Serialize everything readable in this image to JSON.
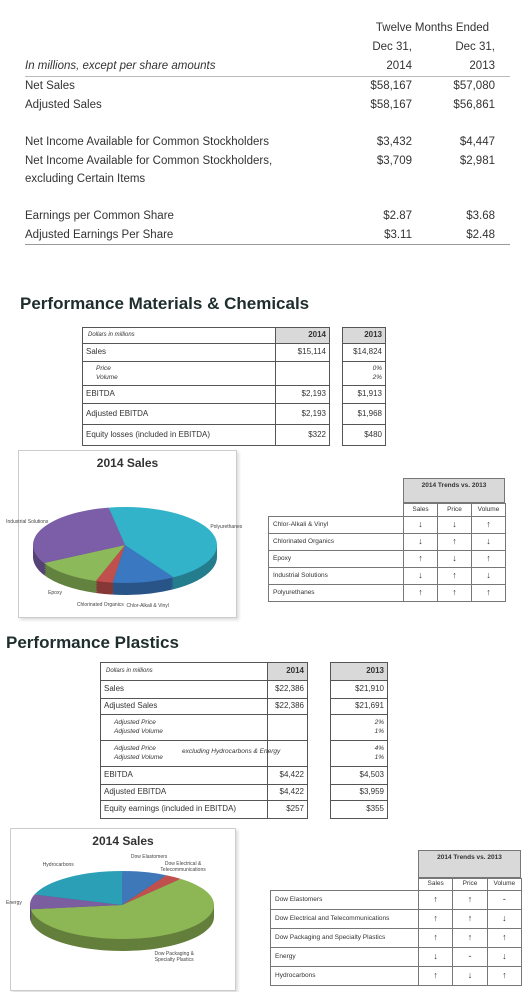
{
  "summary": {
    "period": "Twelve Months Ended",
    "columns": [
      {
        "line1": "Dec 31,",
        "line2": "2014"
      },
      {
        "line1": "Dec 31,",
        "line2": "2013"
      }
    ],
    "caption": "In millions, except per share amounts",
    "groups": [
      [
        [
          "Net Sales",
          "$58,167",
          "$57,080"
        ],
        [
          "Adjusted Sales",
          "$58,167",
          "$56,861"
        ]
      ],
      [
        [
          "Net Income Available for Common Stockholders",
          "$3,432",
          "$4,447"
        ],
        [
          "Net Income Available for Common Stockholders, excluding Certain Items",
          "$3,709",
          "$2,981"
        ]
      ],
      [
        [
          "Earnings per Common Share",
          "$2.87",
          "$3.68"
        ],
        [
          "Adjusted Earnings Per Share",
          "$3.11",
          "$2.48"
        ]
      ]
    ]
  },
  "sections": [
    {
      "title": "Performance Materials & Chemicals",
      "table": {
        "caption": "Dollars in millions",
        "years": [
          "2014",
          "2013"
        ],
        "rows": [
          {
            "label": "Sales",
            "v2014": "$15,114",
            "v2013": "$14,824"
          },
          {
            "sublabels": [
              "Price",
              "Volume"
            ],
            "v2013": [
              "0%",
              "2%"
            ]
          },
          {
            "label": "EBITDA",
            "v2014": "$2,193",
            "v2013": "$1,913"
          },
          {
            "label": "Adjusted EBITDA",
            "v2014": "$2,193",
            "v2013": "$1,968"
          },
          {
            "label": "Equity losses (included in EBITDA)",
            "v2014": "$322",
            "v2013": "$480"
          }
        ]
      },
      "pie": {
        "title": "2014 Sales",
        "slices": [
          {
            "label": "Polyurethanes",
            "value": 44,
            "color": "#33b3c9"
          },
          {
            "label": "Chlor-Alkali & Vinyl",
            "value": 11,
            "color": "#3b78c2"
          },
          {
            "label": "Chlorinated Organics",
            "value": 3,
            "color": "#c0504d"
          },
          {
            "label": "Epoxy",
            "value": 12,
            "color": "#8cb95a"
          },
          {
            "label": "Industrial Solutions",
            "value": 30,
            "color": "#7b5ea7"
          }
        ]
      },
      "trends": {
        "title": "2014 Trends vs. 2013",
        "columns": [
          "Sales",
          "Price",
          "Volume"
        ],
        "rows": [
          {
            "name": "Chlor-Alkali & Vinyl",
            "marks": [
              "↓",
              "↓",
              "↑"
            ]
          },
          {
            "name": "Chlorinated Organics",
            "marks": [
              "↓",
              "↑",
              "↓"
            ]
          },
          {
            "name": "Epoxy",
            "marks": [
              "↑",
              "↓",
              "↑"
            ]
          },
          {
            "name": "Industrial Solutions",
            "marks": [
              "↓",
              "↑",
              "↓"
            ]
          },
          {
            "name": "Polyurethanes",
            "marks": [
              "↑",
              "↑",
              "↑"
            ]
          }
        ]
      }
    },
    {
      "title": "Performance Plastics",
      "table": {
        "caption": "Dollars in millions",
        "years": [
          "2014",
          "2013"
        ],
        "rows": [
          {
            "label": "Sales",
            "v2014": "$22,386",
            "v2013": "$21,910"
          },
          {
            "label": "Adjusted Sales",
            "v2014": "$22,386",
            "v2013": "$21,691"
          },
          {
            "sublabels": [
              "Adjusted Price",
              "Adjusted Volume"
            ],
            "v2013": [
              "2%",
              "1%"
            ]
          },
          {
            "sublabels": [
              "Adjusted Price",
              "Adjusted Volume"
            ],
            "note": "excluding Hydrocarbons & Energy",
            "v2013": [
              "4%",
              "1%"
            ]
          },
          {
            "label": "EBITDA",
            "v2014": "$4,422",
            "v2013": "$4,503"
          },
          {
            "label": "Adjusted EBITDA",
            "v2014": "$4,422",
            "v2013": "$3,959"
          },
          {
            "label": "Equity earnings (included in EBITDA)",
            "v2014": "$257",
            "v2013": "$355"
          }
        ]
      },
      "pie": {
        "title": "2014 Sales",
        "slices": [
          {
            "label": "Dow Elastomers",
            "value": 8,
            "color": "#3e78b8"
          },
          {
            "label": "Dow Electrical & Telecommunications",
            "value": 3,
            "color": "#c0504d"
          },
          {
            "label": "Dow Packaging & Specialty Plastics",
            "value": 62,
            "color": "#8db655"
          },
          {
            "label": "Energy",
            "value": 7,
            "color": "#7a5ea0"
          },
          {
            "label": "Hydrocarbons",
            "value": 20,
            "color": "#2a9fb5"
          }
        ]
      },
      "trends": {
        "title": "2014 Trends vs. 2013",
        "columns": [
          "Sales",
          "Price",
          "Volume"
        ],
        "rows": [
          {
            "name": "Dow Elastomers",
            "marks": [
              "↑",
              "↑",
              "-"
            ]
          },
          {
            "name": "Dow Electrical and Telecommunications",
            "marks": [
              "↑",
              "↑",
              "↓"
            ]
          },
          {
            "name": "Dow Packaging and Specialty Plastics",
            "marks": [
              "↑",
              "↑",
              "↑"
            ]
          },
          {
            "name": "Energy",
            "marks": [
              "↓",
              "-",
              "↓"
            ]
          },
          {
            "name": "Hydrocarbons",
            "marks": [
              "↑",
              "↓",
              "↑"
            ]
          }
        ]
      }
    }
  ]
}
